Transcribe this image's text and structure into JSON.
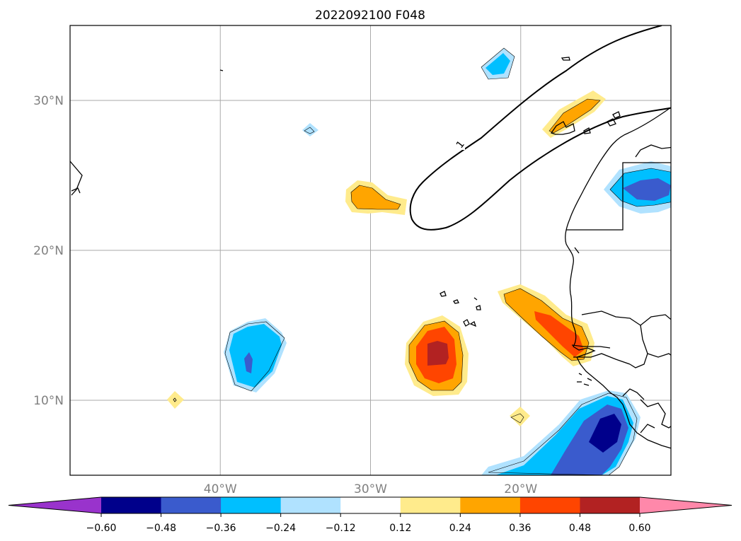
{
  "title": "2022092100 F048",
  "map": {
    "lat_ticks": [
      {
        "value": 30,
        "label": "30°N"
      },
      {
        "value": 20,
        "label": "20°N"
      },
      {
        "value": 10,
        "label": "10°N"
      }
    ],
    "lon_ticks": [
      {
        "value": -40,
        "label": "40°W"
      },
      {
        "value": -30,
        "label": "30°W"
      },
      {
        "value": -20,
        "label": "20°W"
      }
    ],
    "extent": {
      "lon_min": -50,
      "lon_max": -10,
      "lat_min": 5,
      "lat_max": 35
    },
    "gridlines": true,
    "contour_line_label": "1"
  },
  "colorbar": {
    "ticks": [
      "−0.60",
      "−0.48",
      "−0.36",
      "−0.24",
      "−0.12",
      "0.12",
      "0.24",
      "0.36",
      "0.48",
      "0.60"
    ],
    "colors": [
      "#9933cc",
      "#00008b",
      "#3a5bcd",
      "#00bfff",
      "#b0e2ff",
      "#ffffff",
      "#ffeb8c",
      "#ffa500",
      "#ff4500",
      "#b22222",
      "#ff88aa"
    ],
    "extend": "both"
  }
}
